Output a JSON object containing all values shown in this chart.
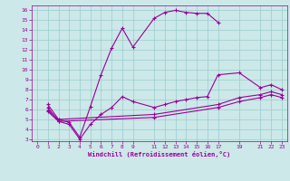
{
  "xlabel": "Windchill (Refroidissement éolien,°C)",
  "bg_color": "#cce8e8",
  "line_color": "#990099",
  "grid_color": "#99cccc",
  "xlim": [
    -0.5,
    23.5
  ],
  "ylim": [
    2.8,
    16.5
  ],
  "xticks": [
    0,
    1,
    2,
    3,
    4,
    5,
    6,
    7,
    8,
    9,
    11,
    12,
    13,
    14,
    15,
    16,
    17,
    19,
    21,
    22,
    23
  ],
  "yticks": [
    3,
    4,
    5,
    6,
    7,
    8,
    9,
    10,
    11,
    12,
    13,
    14,
    15,
    16
  ],
  "line1_x": [
    1,
    2,
    3,
    4,
    5,
    6,
    7,
    8,
    9,
    11,
    12,
    13,
    14,
    15,
    16,
    17
  ],
  "line1_y": [
    6.5,
    5.0,
    4.7,
    3.2,
    6.3,
    9.5,
    12.2,
    14.2,
    12.3,
    15.2,
    15.8,
    16.0,
    15.8,
    15.7,
    15.7,
    14.8
  ],
  "line2_x": [
    1,
    2,
    3,
    4,
    5,
    6,
    7,
    8,
    9,
    11,
    12,
    13,
    14,
    15,
    16,
    17,
    19,
    21,
    22,
    23
  ],
  "line2_y": [
    6.2,
    4.8,
    4.5,
    3.0,
    4.5,
    5.5,
    6.2,
    7.3,
    6.8,
    6.2,
    6.5,
    6.8,
    7.0,
    7.2,
    7.3,
    9.5,
    9.7,
    8.2,
    8.5,
    8.0
  ],
  "line3_x": [
    1,
    2,
    11,
    17,
    19,
    21,
    22,
    23
  ],
  "line3_y": [
    5.9,
    5.0,
    5.5,
    6.5,
    7.2,
    7.5,
    7.8,
    7.5
  ],
  "line4_x": [
    1,
    2,
    11,
    17,
    19,
    21,
    22,
    23
  ],
  "line4_y": [
    5.8,
    4.8,
    5.2,
    6.2,
    6.8,
    7.2,
    7.5,
    7.2
  ]
}
